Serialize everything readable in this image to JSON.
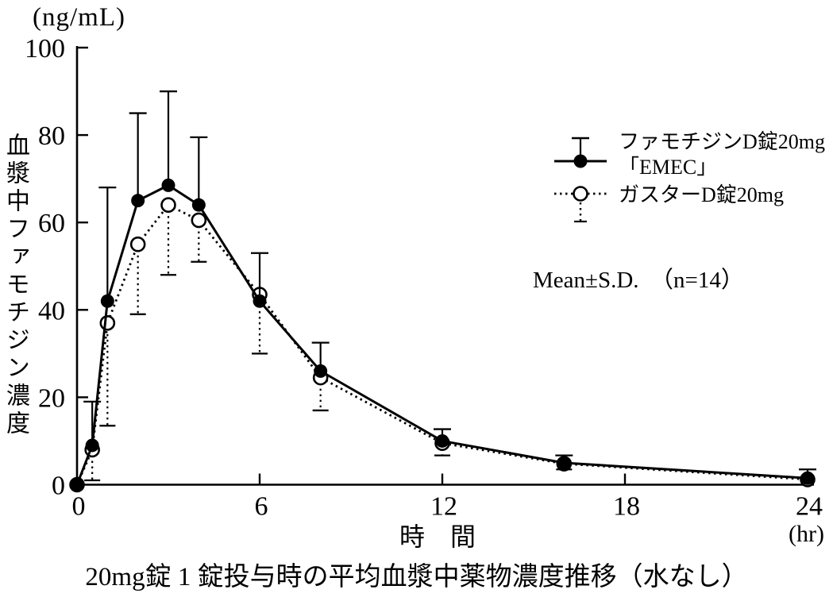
{
  "chart_data": {
    "type": "line",
    "title": "20mg錠 1 錠投与時の平均血漿中薬物濃度推移（水なし）",
    "xlabel": "時　間",
    "ylabel": "血漿中ファモチジン濃度",
    "y_axis_unit": "(ng/mL)",
    "x_axis_unit": "(hr)",
    "annotation": "Mean±S.D.　（n=14）",
    "xlim": [
      0,
      24
    ],
    "ylim": [
      0,
      100
    ],
    "x_ticks": [
      0,
      6,
      12,
      18,
      24
    ],
    "y_ticks": [
      0,
      20,
      40,
      60,
      80,
      100
    ],
    "grid": false,
    "legend_position": "upper right",
    "x": [
      0,
      0.5,
      1,
      2,
      3,
      4,
      6,
      8,
      12,
      16,
      24
    ],
    "series": [
      {
        "name": "ファモチジンD錠20mg「EMEC」",
        "legend_lines": [
          "ファモチジンD錠20mg",
          "「EMEC」"
        ],
        "marker": "filled-circle",
        "line_style": "solid",
        "errorbar_direction": "up",
        "values": [
          0,
          9,
          42,
          65,
          68.5,
          64,
          42,
          26,
          10,
          5,
          1.5
        ],
        "errors": [
          0,
          10,
          26,
          20,
          21.5,
          15.5,
          11,
          6.5,
          2.7,
          1.7,
          2
        ]
      },
      {
        "name": "ガスターD錠20mg",
        "legend_lines": [
          "ガスターD錠20mg"
        ],
        "marker": "open-circle",
        "line_style": "dotted",
        "errorbar_direction": "down",
        "values": [
          0,
          8,
          37,
          55,
          64,
          60.5,
          43.5,
          24.5,
          9.5,
          4.8,
          1.2
        ],
        "errors": [
          0,
          7,
          23.5,
          16,
          16,
          9.5,
          13.5,
          7.5,
          2.8,
          1.3,
          0
        ]
      }
    ],
    "ink_color": "#000000",
    "background_color": "#ffffff"
  }
}
